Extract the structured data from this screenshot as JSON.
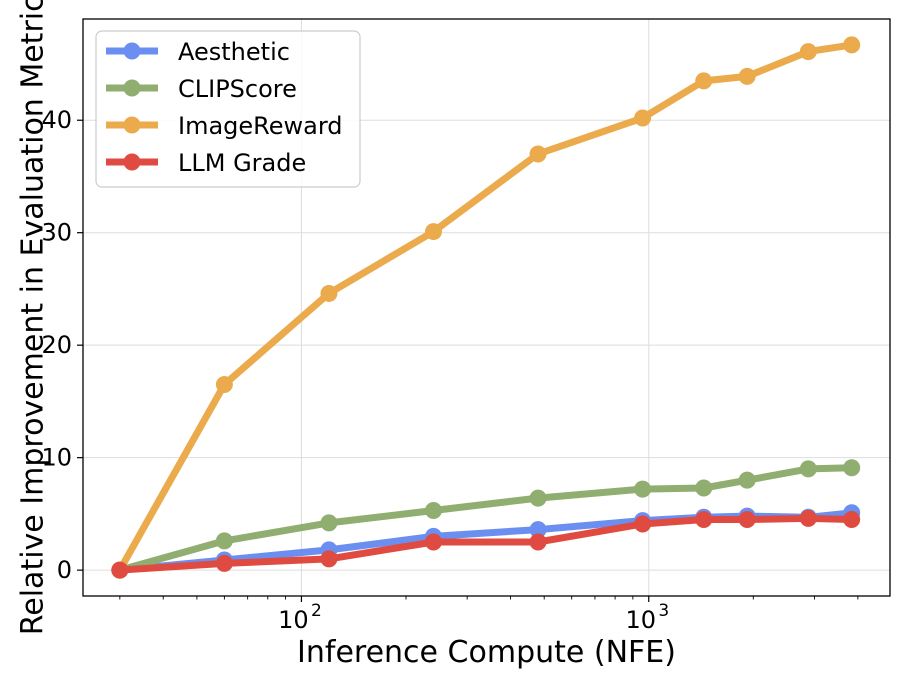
{
  "chart_data": {
    "type": "line",
    "xscale": "log",
    "xlabel": "Inference Compute (NFE)",
    "ylabel": "Relative Improvement in Evaluation Metrics",
    "xlim": [
      23.5,
      4950
    ],
    "ylim": [
      -2.3,
      49
    ],
    "x": [
      30,
      60,
      120,
      240,
      480,
      960,
      1440,
      1920,
      2880,
      3840
    ],
    "x_ticks": [
      {
        "value": 100,
        "base": "10",
        "exp": "2"
      },
      {
        "value": 1000,
        "base": "10",
        "exp": "3"
      }
    ],
    "y_ticks": [
      0,
      10,
      20,
      30,
      40
    ],
    "grid": true,
    "legend_position": "top-left",
    "series": [
      {
        "name": "Aesthetic",
        "color": "#6b8ff0",
        "values": [
          0,
          0.9,
          1.8,
          3.0,
          3.6,
          4.4,
          4.7,
          4.8,
          4.7,
          5.1
        ]
      },
      {
        "name": "CLIPScore",
        "color": "#8fae6f",
        "values": [
          0,
          2.6,
          4.2,
          5.3,
          6.4,
          7.2,
          7.3,
          8.0,
          9.0,
          9.1
        ]
      },
      {
        "name": "ImageReward",
        "color": "#ebab4d",
        "values": [
          0,
          16.5,
          24.6,
          30.1,
          37.0,
          40.2,
          43.5,
          43.9,
          46.1,
          46.7
        ]
      },
      {
        "name": "LLM Grade",
        "color": "#e04b41",
        "values": [
          0,
          0.6,
          1.0,
          2.5,
          2.5,
          4.1,
          4.5,
          4.5,
          4.6,
          4.5
        ]
      }
    ]
  }
}
